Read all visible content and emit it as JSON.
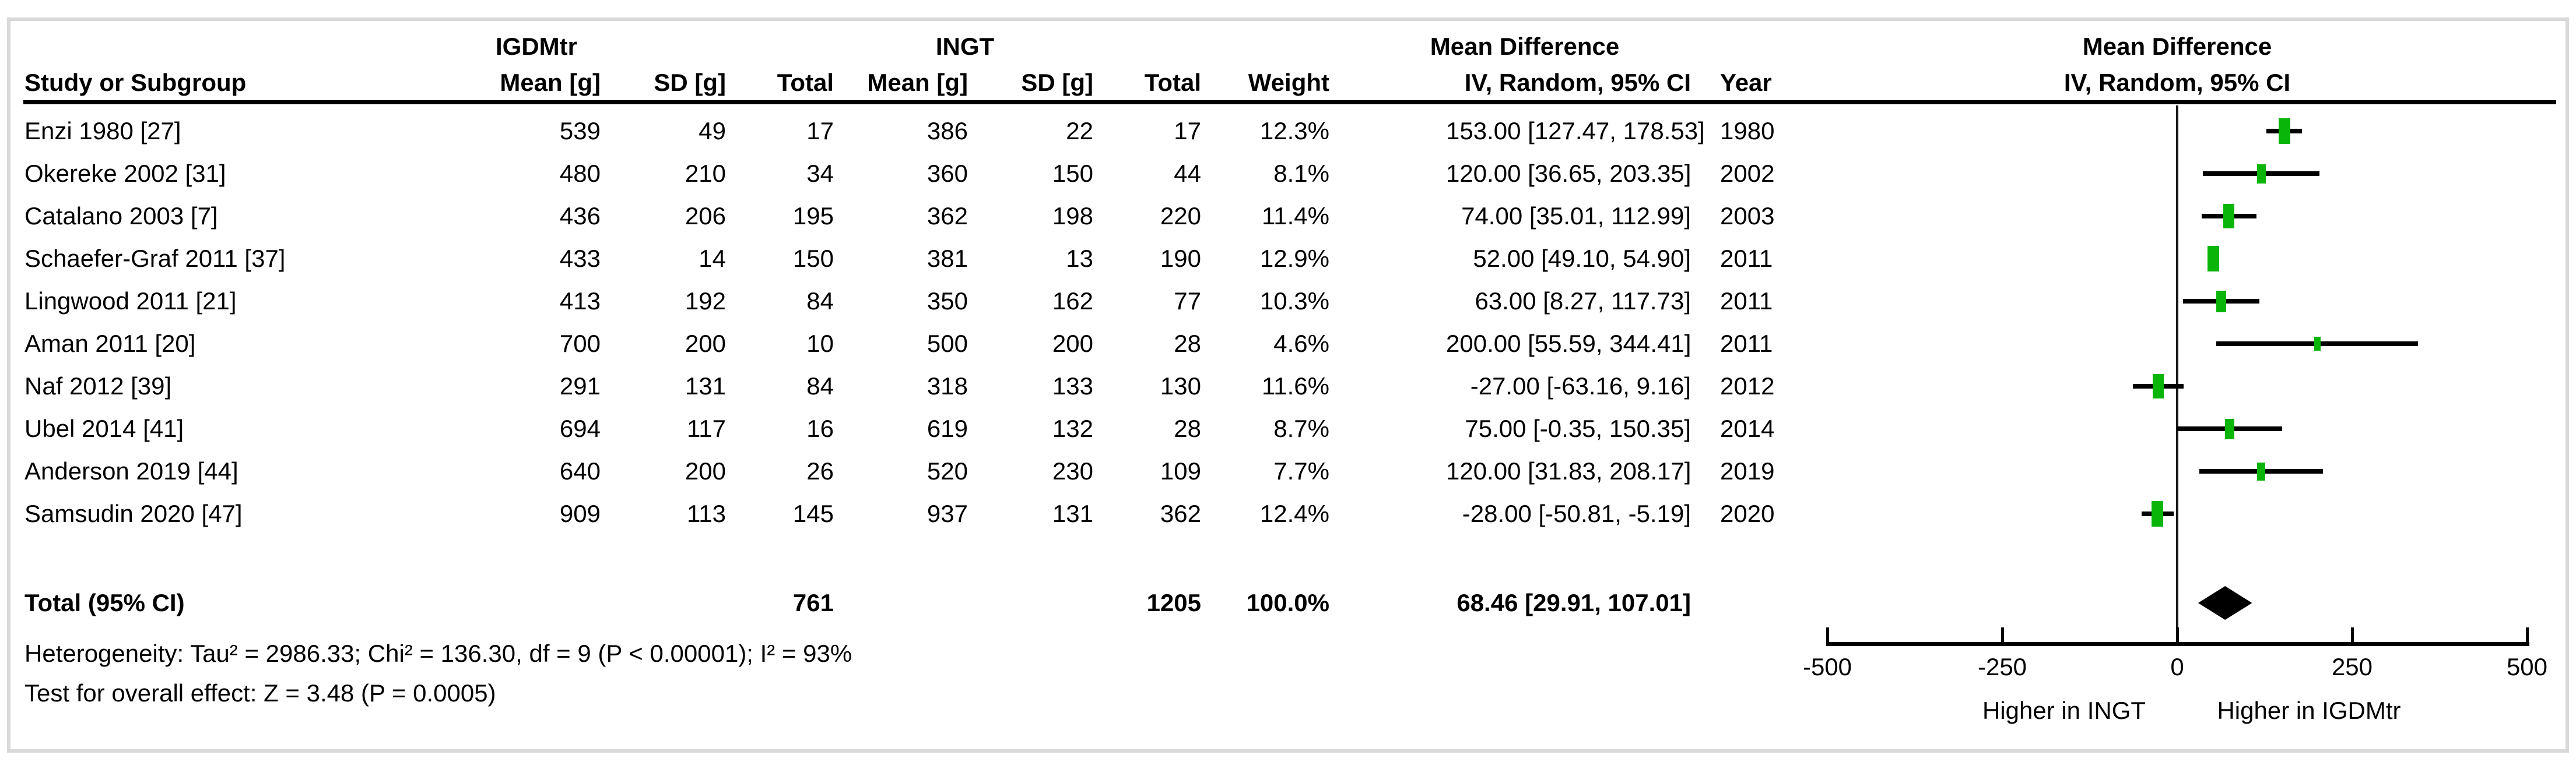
{
  "table": {
    "group_headers": {
      "igdmtr": "IGDMtr",
      "ingt": "INGT",
      "mean_difference": "Mean Difference",
      "mean_difference_plot": "Mean Difference"
    },
    "column_headers": {
      "study": "Study or Subgroup",
      "mean1": "Mean [g]",
      "sd1": "SD [g]",
      "total1": "Total",
      "mean2": "Mean [g]",
      "sd2": "SD [g]",
      "total2": "Total",
      "weight": "Weight",
      "ci": "IV, Random, 95% CI",
      "year": "Year",
      "ci_plot": "IV, Random, 95% CI"
    }
  },
  "chart_data": {
    "type": "scatter",
    "subtype": "forest-plot",
    "effect_label": "Mean Difference",
    "method_label": "IV, Random, 95% CI",
    "x_axis": {
      "ticks": [
        -500,
        -250,
        0,
        250,
        500
      ],
      "range": [
        -500,
        500
      ],
      "label_negative": "Higher in INGT",
      "label_positive": "Higher in IGDMtr"
    },
    "studies": [
      {
        "name": "Enzi 1980 [27]",
        "mean_igdmtr": "539",
        "sd_igdmtr": "49",
        "total_igdmtr": "17",
        "mean_ingt": "386",
        "sd_ingt": "22",
        "total_ingt": "17",
        "weight": "12.3%",
        "ci_text": "153.00 [127.47, 178.53]",
        "year": "1980",
        "md": 153.0,
        "ci_low": 127.47,
        "ci_high": 178.53,
        "weight_value": 12.3
      },
      {
        "name": "Okereke 2002 [31]",
        "mean_igdmtr": "480",
        "sd_igdmtr": "210",
        "total_igdmtr": "34",
        "mean_ingt": "360",
        "sd_ingt": "150",
        "total_ingt": "44",
        "weight": "8.1%",
        "ci_text": "120.00 [36.65, 203.35]",
        "year": "2002",
        "md": 120.0,
        "ci_low": 36.65,
        "ci_high": 203.35,
        "weight_value": 8.1
      },
      {
        "name": "Catalano 2003 [7]",
        "mean_igdmtr": "436",
        "sd_igdmtr": "206",
        "total_igdmtr": "195",
        "mean_ingt": "362",
        "sd_ingt": "198",
        "total_ingt": "220",
        "weight": "11.4%",
        "ci_text": "74.00 [35.01, 112.99]",
        "year": "2003",
        "md": 74.0,
        "ci_low": 35.01,
        "ci_high": 112.99,
        "weight_value": 11.4
      },
      {
        "name": "Schaefer-Graf 2011 [37]",
        "mean_igdmtr": "433",
        "sd_igdmtr": "14",
        "total_igdmtr": "150",
        "mean_ingt": "381",
        "sd_ingt": "13",
        "total_ingt": "190",
        "weight": "12.9%",
        "ci_text": "52.00 [49.10, 54.90]",
        "year": "2011",
        "md": 52.0,
        "ci_low": 49.1,
        "ci_high": 54.9,
        "weight_value": 12.9
      },
      {
        "name": "Lingwood 2011 [21]",
        "mean_igdmtr": "413",
        "sd_igdmtr": "192",
        "total_igdmtr": "84",
        "mean_ingt": "350",
        "sd_ingt": "162",
        "total_ingt": "77",
        "weight": "10.3%",
        "ci_text": "63.00 [8.27, 117.73]",
        "year": "2011",
        "md": 63.0,
        "ci_low": 8.27,
        "ci_high": 117.73,
        "weight_value": 10.3
      },
      {
        "name": "Aman 2011 [20]",
        "mean_igdmtr": "700",
        "sd_igdmtr": "200",
        "total_igdmtr": "10",
        "mean_ingt": "500",
        "sd_ingt": "200",
        "total_ingt": "28",
        "weight": "4.6%",
        "ci_text": "200.00 [55.59, 344.41]",
        "year": "2011",
        "md": 200.0,
        "ci_low": 55.59,
        "ci_high": 344.41,
        "weight_value": 4.6
      },
      {
        "name": "Naf 2012 [39]",
        "mean_igdmtr": "291",
        "sd_igdmtr": "131",
        "total_igdmtr": "84",
        "mean_ingt": "318",
        "sd_ingt": "133",
        "total_ingt": "130",
        "weight": "11.6%",
        "ci_text": "-27.00 [-63.16, 9.16]",
        "year": "2012",
        "md": -27.0,
        "ci_low": -63.16,
        "ci_high": 9.16,
        "weight_value": 11.6
      },
      {
        "name": "Ubel 2014 [41]",
        "mean_igdmtr": "694",
        "sd_igdmtr": "117",
        "total_igdmtr": "16",
        "mean_ingt": "619",
        "sd_ingt": "132",
        "total_ingt": "28",
        "weight": "8.7%",
        "ci_text": "75.00 [-0.35, 150.35]",
        "year": "2014",
        "md": 75.0,
        "ci_low": -0.35,
        "ci_high": 150.35,
        "weight_value": 8.7
      },
      {
        "name": "Anderson 2019 [44]",
        "mean_igdmtr": "640",
        "sd_igdmtr": "200",
        "total_igdmtr": "26",
        "mean_ingt": "520",
        "sd_ingt": "230",
        "total_ingt": "109",
        "weight": "7.7%",
        "ci_text": "120.00 [31.83, 208.17]",
        "year": "2019",
        "md": 120.0,
        "ci_low": 31.83,
        "ci_high": 208.17,
        "weight_value": 7.7
      },
      {
        "name": "Samsudin 2020 [47]",
        "mean_igdmtr": "909",
        "sd_igdmtr": "113",
        "total_igdmtr": "145",
        "mean_ingt": "937",
        "sd_ingt": "131",
        "total_ingt": "362",
        "weight": "12.4%",
        "ci_text": "-28.00 [-50.81, -5.19]",
        "year": "2020",
        "md": -28.0,
        "ci_low": -50.81,
        "ci_high": -5.19,
        "weight_value": 12.4
      }
    ],
    "total": {
      "label": "Total (95% CI)",
      "total_igdmtr": "761",
      "total_ingt": "1205",
      "weight": "100.0%",
      "ci_text": "68.46 [29.91, 107.01]",
      "md": 68.46,
      "ci_low": 29.91,
      "ci_high": 107.01
    }
  },
  "footnotes": {
    "heterogeneity": "Heterogeneity: Tau² = 2986.33; Chi² = 136.30, df = 9 (P < 0.00001); I² = 93%",
    "overall_effect": "Test for overall effect: Z = 3.48 (P = 0.0005)"
  },
  "colors": {
    "marker_green": "#0ab50a",
    "ci_line_black": "#000000",
    "diamond_black": "#000000",
    "frame_gray": "#d9d9d9"
  }
}
